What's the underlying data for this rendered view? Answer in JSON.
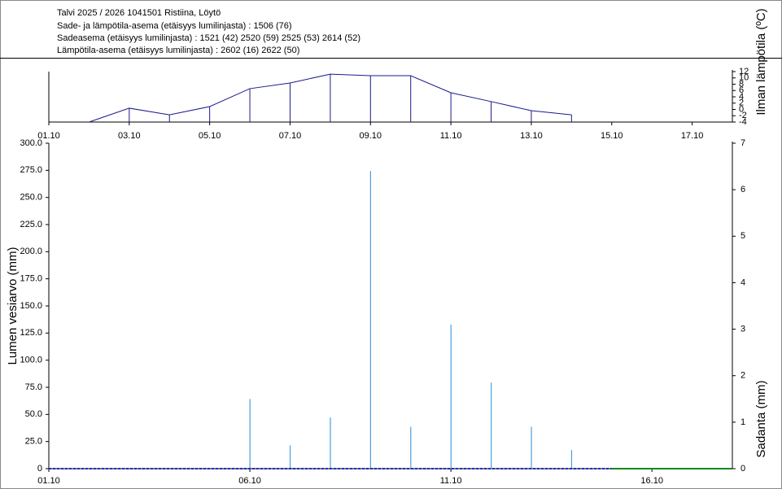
{
  "header": {
    "lines": [
      "Talvi 2025 / 2026 1041501 Ristiina, Löytö",
      "Sade- ja lämpötila-asema (etäisyys lumilinjasta) :  1506 (76)",
      "Sadeasema (etäisyys lumilinjasta) :  1521 (42) 2520 (59) 2525 (53) 2614 (52)",
      "Lämpötila-asema (etäisyys lumilinjasta) :  2602 (16) 2622 (50)"
    ]
  },
  "chart_data": [
    {
      "type": "line",
      "y_label": "Ilman lämpötila (ºC)",
      "xlim": [
        1,
        18
      ],
      "xticks": [
        {
          "value": 1,
          "label": "01.10"
        },
        {
          "value": 3,
          "label": "03.10"
        },
        {
          "value": 5,
          "label": "05.10"
        },
        {
          "value": 7,
          "label": "07.10"
        },
        {
          "value": 9,
          "label": "09.10"
        },
        {
          "value": 11,
          "label": "11.10"
        },
        {
          "value": 13,
          "label": "13.10"
        },
        {
          "value": 15,
          "label": "15.10"
        },
        {
          "value": 17,
          "label": "17.10"
        }
      ],
      "ylim": [
        -4,
        12
      ],
      "yticks": [
        -4,
        -2,
        0,
        2,
        4,
        6,
        8,
        10,
        12
      ],
      "series": [
        {
          "color": "#1a1a8c",
          "x": [
            2,
            3,
            4,
            5,
            6,
            7,
            8,
            9,
            10,
            11,
            12,
            13,
            14
          ],
          "values": [
            -4,
            0.4,
            -1.7,
            0.9,
            6.6,
            8.4,
            11.2,
            10.7,
            10.7,
            5.3,
            2.5,
            -0.4,
            -1.7
          ]
        }
      ]
    },
    {
      "type": "bar-line",
      "y_label": "Lumen vesiarvo (mm)",
      "y2_label": "Sadanta (mm)",
      "xlim": [
        1,
        18
      ],
      "xticks": [
        {
          "value": 1,
          "label": "01.10"
        },
        {
          "value": 6,
          "label": "06.10"
        },
        {
          "value": 11,
          "label": "11.10"
        },
        {
          "value": 16,
          "label": "16.10"
        }
      ],
      "ylim": [
        0,
        300
      ],
      "yticks": [
        0,
        {
          "value": 25,
          "label": "25.0"
        },
        {
          "value": 50,
          "label": "50.0"
        },
        {
          "value": 75,
          "label": "75.0"
        },
        {
          "value": 100,
          "label": "100.0"
        },
        {
          "value": 125,
          "label": "125.0"
        },
        {
          "value": 150,
          "label": "150.0"
        },
        {
          "value": 175,
          "label": "175.0"
        },
        {
          "value": 200,
          "label": "200.0"
        },
        {
          "value": 225,
          "label": "225.0"
        },
        {
          "value": 250,
          "label": "250.0"
        },
        {
          "value": 275,
          "label": "275.0"
        },
        {
          "value": 300,
          "label": "300.0"
        }
      ],
      "y2lim": [
        0,
        7
      ],
      "y2ticks": [
        0,
        1,
        2,
        3,
        4,
        5,
        6,
        7
      ],
      "series": [
        {
          "type": "bar",
          "axis": "y2",
          "color": "#4a9fe0",
          "x": [
            6,
            7,
            8,
            9,
            10,
            11,
            12,
            13,
            14
          ],
          "values": [
            1.5,
            0.5,
            1.1,
            6.4,
            0.9,
            3.1,
            1.85,
            0.9,
            0.4
          ]
        },
        {
          "type": "line",
          "dash": true,
          "color": "#2030c0",
          "x": [
            1,
            15
          ],
          "values": [
            0,
            0
          ]
        },
        {
          "type": "line",
          "color": "#0a8a1a",
          "x": [
            15,
            18
          ],
          "values": [
            0,
            0
          ]
        }
      ]
    }
  ]
}
